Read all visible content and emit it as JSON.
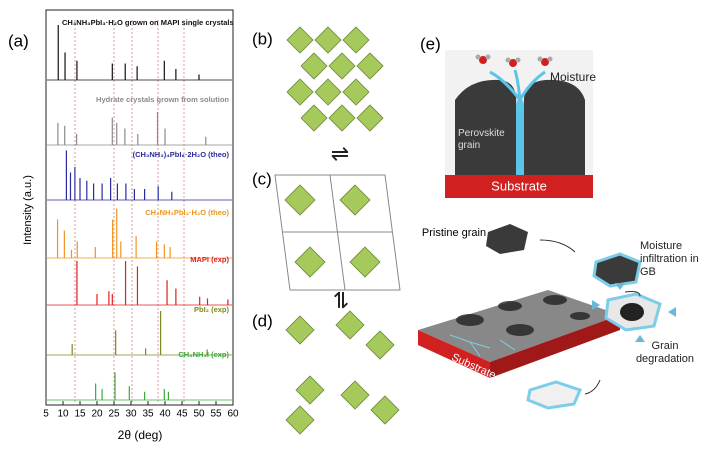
{
  "panels": {
    "a": {
      "label": "(a)",
      "xlabel": "2θ (deg)",
      "ylabel": "Intensity (a.u.)",
      "xlim": [
        5,
        60
      ],
      "xticks": [
        5,
        10,
        15,
        20,
        25,
        30,
        35,
        40,
        45,
        50,
        55,
        60
      ],
      "patterns": [
        {
          "name": "CH₃NH₃PbI₃·H₂O grown on MAPI single crystals",
          "color": "#111111",
          "peaks": [
            [
              8.6,
              1.0
            ],
            [
              10.6,
              0.5
            ],
            [
              14.1,
              0.35
            ],
            [
              24.5,
              0.3
            ],
            [
              28.3,
              0.3
            ],
            [
              31.8,
              0.25
            ],
            [
              39.8,
              0.35
            ],
            [
              43.2,
              0.2
            ],
            [
              50,
              0.1
            ]
          ]
        },
        {
          "name": "Hydrate crystals grown from solution",
          "color": "#8a8a8a",
          "peaks": [
            [
              8.5,
              0.4
            ],
            [
              10.5,
              0.35
            ],
            [
              14,
              0.2
            ],
            [
              24.5,
              0.5
            ],
            [
              25.8,
              0.4
            ],
            [
              28.2,
              0.3
            ],
            [
              32,
              0.2
            ],
            [
              37.8,
              0.6
            ],
            [
              40,
              0.3
            ],
            [
              52,
              0.15
            ]
          ]
        },
        {
          "name": "(CH₃NH₃)₄PbI₆·2H₂O (theo)",
          "color": "#2a2aa0",
          "peaks": [
            [
              11.0,
              0.9
            ],
            [
              12.2,
              0.5
            ],
            [
              13.5,
              0.6
            ],
            [
              15,
              0.4
            ],
            [
              17,
              0.35
            ],
            [
              19,
              0.3
            ],
            [
              21.5,
              0.3
            ],
            [
              24,
              0.4
            ],
            [
              26,
              0.3
            ],
            [
              28.5,
              0.3
            ],
            [
              31,
              0.2
            ],
            [
              34,
              0.2
            ],
            [
              38,
              0.25
            ],
            [
              42,
              0.15
            ]
          ]
        },
        {
          "name": "CH₃NH₃PbI₃·H₂O (theo)",
          "color": "#f0941e",
          "peaks": [
            [
              8.4,
              0.7
            ],
            [
              10.4,
              0.5
            ],
            [
              12.5,
              0.15
            ],
            [
              14.2,
              0.3
            ],
            [
              19.5,
              0.2
            ],
            [
              24.6,
              0.7
            ],
            [
              25.8,
              0.9
            ],
            [
              27,
              0.3
            ],
            [
              31.5,
              0.4
            ],
            [
              37.5,
              0.3
            ],
            [
              39.8,
              0.25
            ],
            [
              41.5,
              0.2
            ]
          ]
        },
        {
          "name": "MAPI (exp)",
          "color": "#e01e1e",
          "peaks": [
            [
              14.1,
              0.8
            ],
            [
              20,
              0.2
            ],
            [
              23.5,
              0.25
            ],
            [
              24.5,
              0.2
            ],
            [
              28.4,
              0.8
            ],
            [
              31.9,
              0.7
            ],
            [
              40.6,
              0.45
            ],
            [
              43.2,
              0.3
            ],
            [
              50.2,
              0.15
            ],
            [
              52.5,
              0.12
            ],
            [
              58.5,
              0.1
            ]
          ]
        },
        {
          "name": "PbI₂ (exp)",
          "color": "#7a8a1e",
          "peaks": [
            [
              12.7,
              0.2
            ],
            [
              25.5,
              0.45
            ],
            [
              34.3,
              0.12
            ],
            [
              38.7,
              0.8
            ],
            [
              52.4,
              0.1
            ]
          ]
        },
        {
          "name": "CH₃NH₃I (exp)",
          "color": "#3aaa3a",
          "peaks": [
            [
              19.6,
              0.3
            ],
            [
              21.5,
              0.2
            ],
            [
              25.3,
              0.5
            ],
            [
              29.5,
              0.25
            ],
            [
              34,
              0.15
            ],
            [
              39.8,
              0.2
            ],
            [
              41,
              0.15
            ]
          ]
        }
      ]
    },
    "b": {
      "label": "(b)"
    },
    "c": {
      "label": "(c)"
    },
    "d": {
      "label": "(d)"
    },
    "e": {
      "label": "(e)",
      "moisture": "Moisture",
      "grain": "Perovskite grain",
      "substrate": "Substrate",
      "pristine": "Pristine grain",
      "infiltration": "Moisture infiltration in GB",
      "degradation": "Grain degradation",
      "slab_substrate": "Substrate"
    }
  }
}
